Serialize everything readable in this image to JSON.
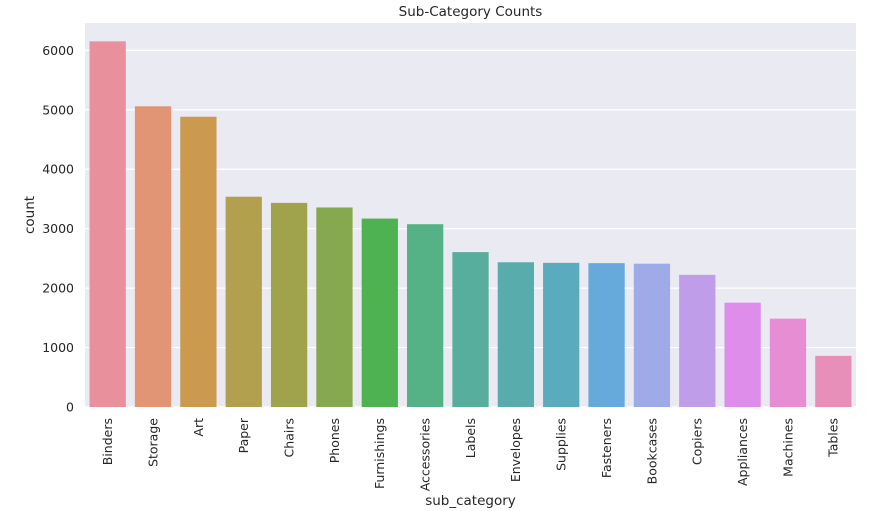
{
  "chart_data": {
    "type": "bar",
    "title": "Sub-Category Counts",
    "xlabel": "sub_category",
    "ylabel": "count",
    "categories": [
      "Binders",
      "Storage",
      "Art",
      "Paper",
      "Chairs",
      "Phones",
      "Furnishings",
      "Accessories",
      "Labels",
      "Envelopes",
      "Supplies",
      "Fasteners",
      "Bookcases",
      "Copiers",
      "Appliances",
      "Machines",
      "Tables"
    ],
    "values": [
      6152,
      5059,
      4883,
      3538,
      3434,
      3357,
      3170,
      3075,
      2606,
      2435,
      2425,
      2420,
      2411,
      2223,
      1755,
      1486,
      861
    ],
    "ylim": [
      0,
      6460
    ],
    "yticks": [
      0,
      1000,
      2000,
      3000,
      4000,
      5000,
      6000
    ],
    "grid": true,
    "background": "#eaeaf2",
    "colors": [
      "#e8919c",
      "#e29575",
      "#cc9a4e",
      "#b3a04e",
      "#a1a34c",
      "#86a84e",
      "#4fb250",
      "#55b287",
      "#57ae9d",
      "#59acac",
      "#5aabbd",
      "#65aadb",
      "#9fabe8",
      "#bf9de8",
      "#df8deb",
      "#e78dd4",
      "#e88fb9"
    ]
  }
}
